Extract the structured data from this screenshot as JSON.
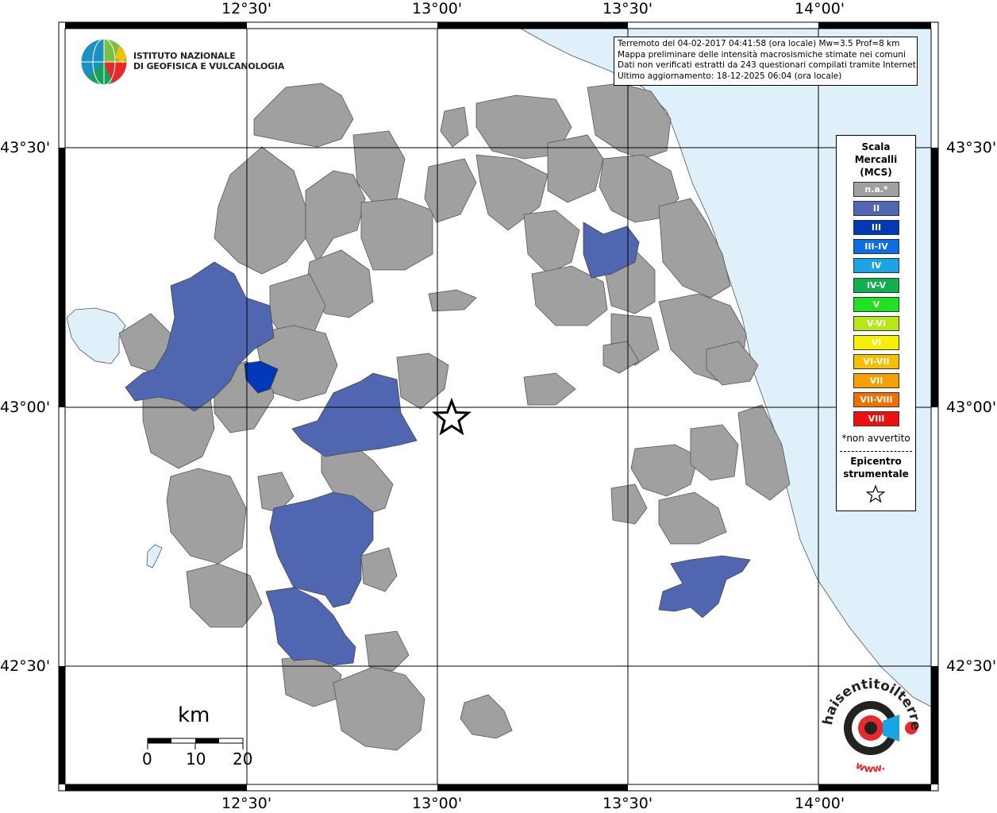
{
  "org": {
    "line1": "ISTITUTO NAZIONALE",
    "line2": "DI GEOFISICA E VULCANOLOGIA"
  },
  "info_box": {
    "line1": "Terremoto del 04-02-2017 04:41:58 (ora locale) Mw=3.5 Prof=8 km",
    "line2": "Mappa preliminare delle intensità macrosismiche stimate nei comuni",
    "line3": "Dati non verificati estratti da 243 questionari compilati tramite Internet.",
    "line4": "Ultimo aggiornamento: 18-12-2025 06:04 (ora locale)"
  },
  "axes": {
    "lon_top": [
      "12°30'",
      "13°00'",
      "13°30'",
      "14°00'"
    ],
    "lon_bottom": [
      "12°30'",
      "13°00'",
      "13°30'",
      "14°00'"
    ],
    "lat_left": [
      "43°30'",
      "43°00'",
      "42°30'"
    ],
    "lat_right": [
      "43°30'",
      "43°00'",
      "42°30'"
    ]
  },
  "legend": {
    "title1": "Scala",
    "title2": "Mercalli",
    "title3": "(MCS)",
    "items": [
      {
        "label": "n.a.*",
        "color": "#a0a0a0"
      },
      {
        "label": "II",
        "color": "#5166b0"
      },
      {
        "label": "III",
        "color": "#0039b8"
      },
      {
        "label": "III-IV",
        "color": "#0a6ee0"
      },
      {
        "label": "IV",
        "color": "#1aa4e6"
      },
      {
        "label": "IV-V",
        "color": "#10b050"
      },
      {
        "label": "V",
        "color": "#22e022"
      },
      {
        "label": "V-VI",
        "color": "#b8e61a"
      },
      {
        "label": "VI",
        "color": "#f4f000"
      },
      {
        "label": "VI-VII",
        "color": "#f6c000"
      },
      {
        "label": "VII",
        "color": "#f6a000"
      },
      {
        "label": "VII-VIII",
        "color": "#f07000"
      },
      {
        "label": "VIII",
        "color": "#ee1010"
      }
    ],
    "note": "*non avvertito",
    "epicenter1": "Epicentro",
    "epicenter2": "strumentale",
    "star_icon": "star-icon"
  },
  "scale_bar": {
    "unit": "km",
    "labels": [
      "0",
      "10",
      "20"
    ]
  },
  "brand": {
    "text": "haisentitoilterremoto.it",
    "prefix": "www."
  },
  "colors": {
    "sea": "#dff0fb",
    "municipality_na": "#a0a0a0",
    "intensity_ii": "#5166b0",
    "intensity_iii": "#0039b8"
  }
}
